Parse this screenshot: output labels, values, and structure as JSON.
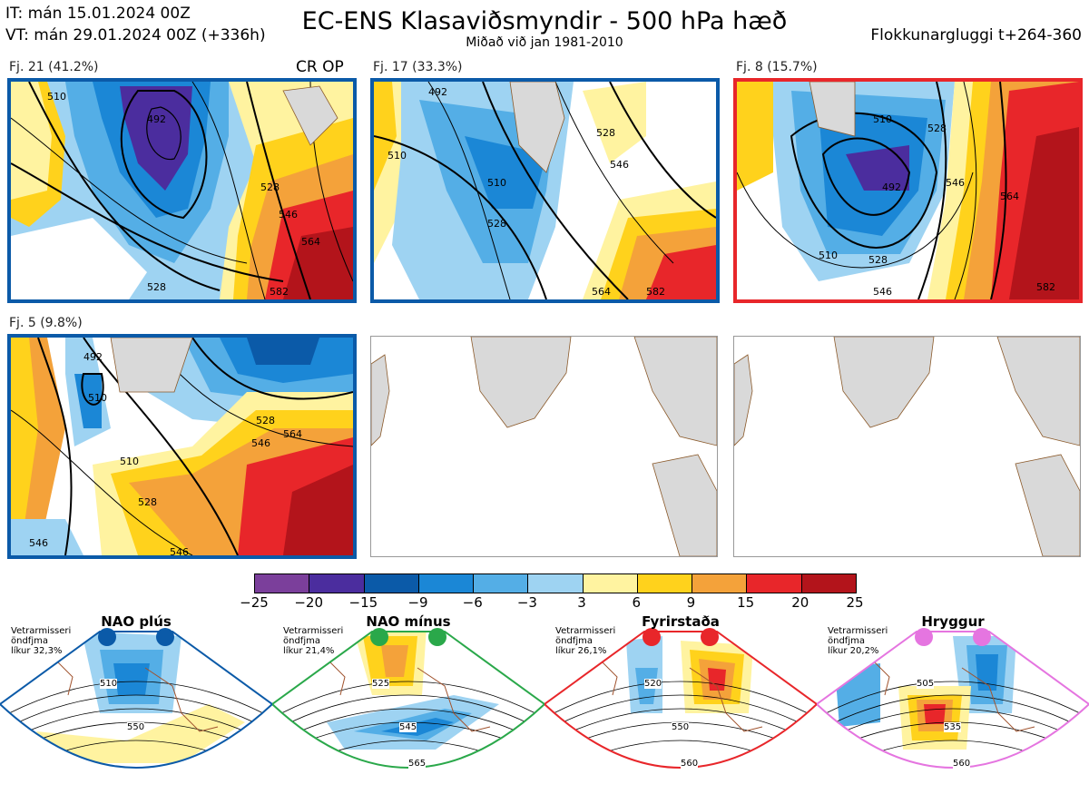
{
  "header": {
    "it_line": "IT: mán 15.01.2024 00Z",
    "vt_line": "VT: mán 29.01.2024 00Z  (+336h)",
    "title": "EC-ENS Klasaviðsmyndir - 500 hPa hæð",
    "subtitle": "Miðað við jan 1981-2010",
    "window": "Flokkunargluggi t+264-360"
  },
  "panels": [
    {
      "label": "Fj. 21 (41.2%)",
      "tag": "CR OP",
      "frame_color": "#0b5aa8",
      "regime": "NAO plús",
      "contours": [
        "510",
        "492",
        "528",
        "510",
        "528",
        "528",
        "546",
        "564",
        "546",
        "564",
        "582",
        "510"
      ]
    },
    {
      "label": "Fj. 17 (33.3%)",
      "tag": "",
      "frame_color": "#0b5aa8",
      "regime": "NAO plús",
      "contours": [
        "492",
        "510",
        "510",
        "528",
        "528",
        "546",
        "546",
        "564",
        "582"
      ]
    },
    {
      "label": "Fj. 8 (15.7%)",
      "tag": "",
      "frame_color": "#e8262a",
      "regime": "Fyrirstaða",
      "contours": [
        "510",
        "492",
        "510",
        "528",
        "546",
        "546",
        "564",
        "582",
        "528"
      ]
    },
    {
      "label": "Fj. 5 (9.8%)",
      "tag": "",
      "frame_color": "#0b5aa8",
      "regime": "NAO plús",
      "contours": [
        "492",
        "510",
        "528",
        "510",
        "528",
        "546",
        "564",
        "546",
        "564",
        "546",
        "528"
      ]
    }
  ],
  "colorbar": {
    "ticks": [
      "−25",
      "−20",
      "−15",
      "−9",
      "−6",
      "−3",
      "3",
      "6",
      "9",
      "15",
      "20",
      "25"
    ],
    "colors": [
      "#7b3f9b",
      "#4b2d9e",
      "#0b5aa8",
      "#1b87d6",
      "#54aee6",
      "#9ed3f2",
      "#ffffff",
      "#fff3a0",
      "#ffd21c",
      "#f4a23a",
      "#e8262a",
      "#b3141b"
    ]
  },
  "regimes": [
    {
      "name": "NAO plús",
      "color": "#0b5aa8",
      "info": [
        "Vetrarmisseri",
        "öndfjma",
        "líkur 32,3%"
      ],
      "contours": [
        "510",
        "550"
      ]
    },
    {
      "name": "NAO mínus",
      "color": "#2aa84a",
      "info": [
        "Vetrarmisseri",
        "öndfjma",
        "líkur 21,4%"
      ],
      "contours": [
        "525",
        "545",
        "565"
      ]
    },
    {
      "name": "Fyrirstaða",
      "color": "#e8262a",
      "info": [
        "Vetrarmisseri",
        "öndfjma",
        "líkur 26,1%"
      ],
      "contours": [
        "520",
        "550",
        "560"
      ]
    },
    {
      "name": "Hryggur",
      "color": "#e575e0",
      "info": [
        "Vetrarmisseri",
        "öndfjma",
        "líkur 20,2%"
      ],
      "contours": [
        "505",
        "535",
        "560"
      ]
    }
  ]
}
